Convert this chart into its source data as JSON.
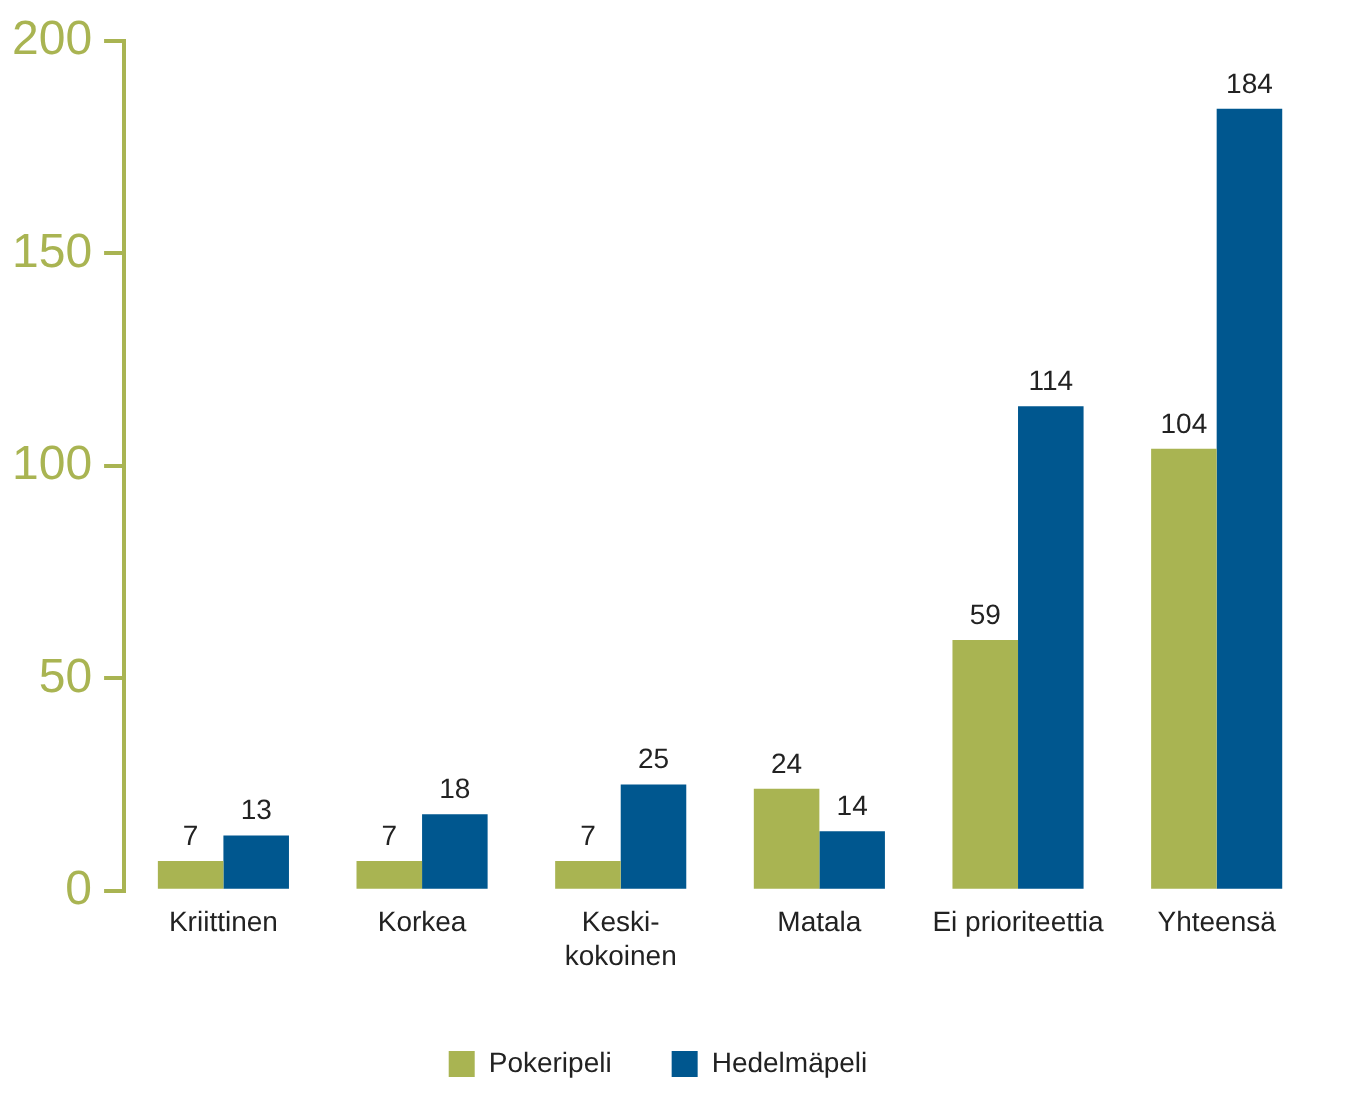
{
  "chart_data": {
    "type": "bar",
    "categories": [
      "Kriittinen",
      "Korkea",
      "Keski-kokoinen",
      "Matala",
      "Ei prioriteettia",
      "Yhteensä"
    ],
    "series": [
      {
        "name": "Pokeripeli",
        "color": "#a9b452",
        "values": [
          7,
          7,
          7,
          24,
          59,
          104
        ]
      },
      {
        "name": "Hedelmäpeli",
        "color": "#00578f",
        "values": [
          13,
          18,
          25,
          14,
          114,
          184
        ]
      }
    ],
    "ylim": [
      0,
      200
    ],
    "yticks": [
      0,
      50,
      100,
      150,
      200
    ],
    "grid": false,
    "legend": "bottom",
    "data_labels": true
  }
}
